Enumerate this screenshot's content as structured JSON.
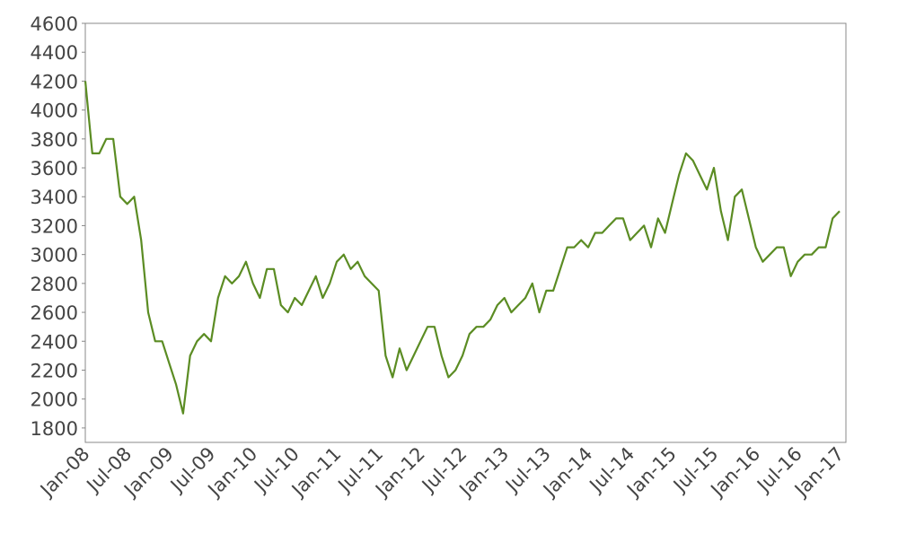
{
  "chart_data": {
    "type": "line",
    "categories": [
      "Jan-08",
      null,
      null,
      null,
      null,
      null,
      "Jul-08",
      null,
      null,
      null,
      null,
      null,
      "Jan-09",
      null,
      null,
      null,
      null,
      null,
      "Jul-09",
      null,
      null,
      null,
      null,
      null,
      "Jan-10",
      null,
      null,
      null,
      null,
      null,
      "Jul-10",
      null,
      null,
      null,
      null,
      null,
      "Jan-11",
      null,
      null,
      null,
      null,
      null,
      "Jul-11",
      null,
      null,
      null,
      null,
      null,
      "Jan-12",
      null,
      null,
      null,
      null,
      null,
      "Jul-12",
      null,
      null,
      null,
      null,
      null,
      "Jan-13",
      null,
      null,
      null,
      null,
      null,
      "Jul-13",
      null,
      null,
      null,
      null,
      null,
      "Jan-14",
      null,
      null,
      null,
      null,
      null,
      "Jul-14",
      null,
      null,
      null,
      null,
      null,
      "Jan-15",
      null,
      null,
      null,
      null,
      null,
      "Jul-15",
      null,
      null,
      null,
      null,
      null,
      "Jan-16",
      null,
      null,
      null,
      null,
      null,
      "Jul-16",
      null,
      null,
      null,
      null,
      null,
      "Jan-17"
    ],
    "series": [
      {
        "color": "#5b8c23",
        "values": [
          4200,
          3700,
          3700,
          3800,
          3800,
          3400,
          3350,
          3400,
          3100,
          2600,
          2400,
          2400,
          2250,
          2100,
          1900,
          2300,
          2400,
          2450,
          2400,
          2700,
          2850,
          2800,
          2850,
          2950,
          2800,
          2700,
          2900,
          2900,
          2650,
          2600,
          2700,
          2650,
          2750,
          2850,
          2700,
          2800,
          2950,
          3000,
          2900,
          2950,
          2850,
          2800,
          2750,
          2300,
          2150,
          2350,
          2200,
          2300,
          2400,
          2500,
          2500,
          2300,
          2150,
          2200,
          2300,
          2450,
          2500,
          2500,
          2550,
          2650,
          2700,
          2600,
          2650,
          2700,
          2800,
          2600,
          2750,
          2750,
          2900,
          3050,
          3050,
          3100,
          3050,
          3150,
          3150,
          3200,
          3250,
          3250,
          3100,
          3150,
          3200,
          3050,
          3250,
          3150,
          3350,
          3550,
          3700,
          3650,
          3550,
          3450,
          3600,
          3300,
          3100,
          3400,
          3450,
          3250,
          3050,
          2950,
          3000,
          3050,
          3050,
          2850,
          2950,
          3000,
          3000,
          3050,
          3050,
          3250,
          3300
        ]
      }
    ],
    "ylim": [
      1700,
      4600
    ],
    "yticks": [
      1800,
      2000,
      2200,
      2400,
      2600,
      2800,
      3000,
      3200,
      3400,
      3600,
      3800,
      4000,
      4200,
      4400,
      4600
    ]
  }
}
